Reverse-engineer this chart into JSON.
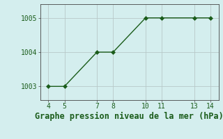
{
  "x": [
    4,
    5,
    7,
    8,
    10,
    11,
    13,
    14
  ],
  "y": [
    1003,
    1003,
    1004,
    1004,
    1005,
    1005,
    1005,
    1005
  ],
  "xlim": [
    3.5,
    14.5
  ],
  "ylim": [
    1002.6,
    1005.4
  ],
  "xticks": [
    4,
    5,
    7,
    8,
    10,
    11,
    13,
    14
  ],
  "yticks": [
    1003,
    1004,
    1005
  ],
  "xlabel": "Graphe pression niveau de la mer (hPa)",
  "line_color": "#1a5c1a",
  "marker_color": "#1a5c1a",
  "bg_color": "#d4eeee",
  "grid_color": "#b8c8c8",
  "xlabel_fontsize": 8.5,
  "tick_fontsize": 7
}
